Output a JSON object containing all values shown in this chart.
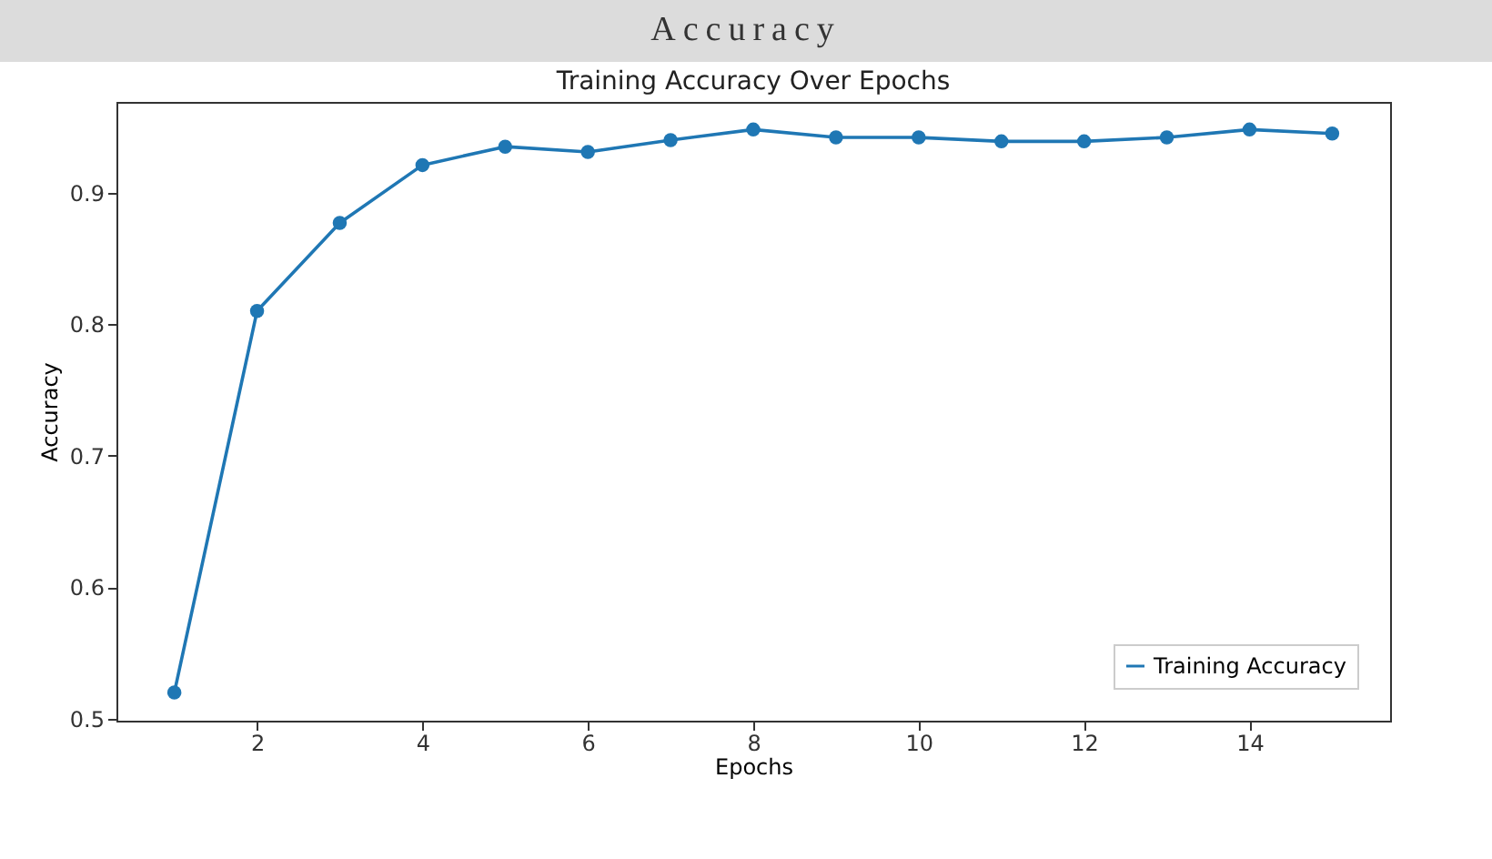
{
  "chart_data": {
    "type": "line",
    "title": "Accuracy",
    "subtitle": "Training Accuracy Over Epochs",
    "xlabel": "Epochs",
    "ylabel": "Accuracy",
    "x": [
      1,
      2,
      3,
      4,
      5,
      6,
      7,
      8,
      9,
      10,
      11,
      12,
      13,
      14,
      15
    ],
    "series": [
      {
        "name": "Training Accuracy",
        "color": "#1f77b4",
        "values": [
          0.52,
          0.81,
          0.877,
          0.921,
          0.935,
          0.931,
          0.94,
          0.948,
          0.942,
          0.942,
          0.939,
          0.939,
          0.942,
          0.948,
          0.945
        ]
      }
    ],
    "xlim": [
      0.3,
      15.7
    ],
    "xticks": [
      2,
      4,
      6,
      8,
      10,
      12,
      14
    ],
    "ylim": [
      0.4986,
      0.969
    ],
    "yticks": [
      0.5,
      0.6,
      0.7,
      0.8,
      0.9
    ],
    "grid": false,
    "legend": "bottom right",
    "marker": "circle",
    "line_style": "solid"
  }
}
